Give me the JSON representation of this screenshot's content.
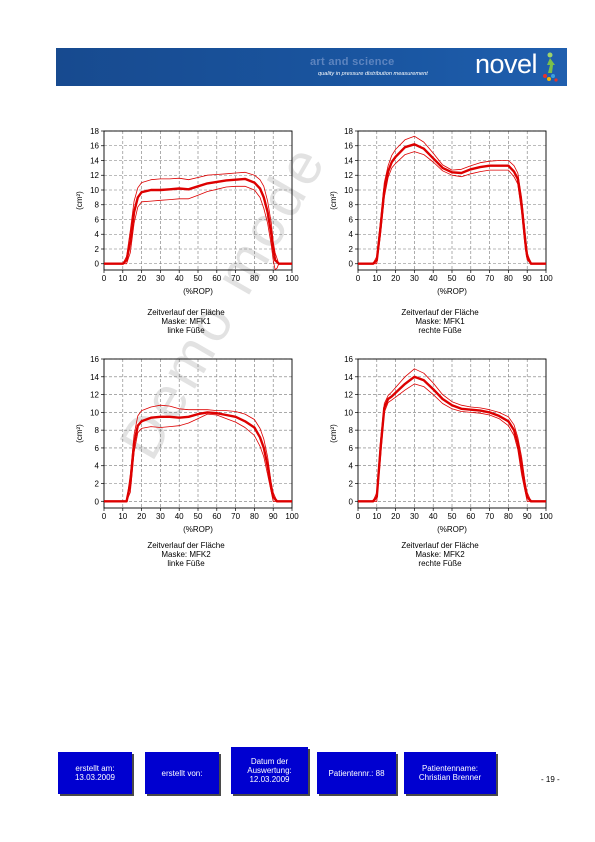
{
  "header": {
    "tagline_main": "art and science",
    "tagline_sub": "quality in pressure distribution measurement",
    "logo": "novel",
    "colors": {
      "banner": "#1a57a3",
      "curve": "#dd0000"
    }
  },
  "watermark": "Demo mode",
  "chart_data": [
    {
      "type": "line",
      "ylabel": "(cm²)",
      "xlabel": "(%ROP)",
      "xlim": [
        0,
        100
      ],
      "ylim": [
        0,
        18
      ],
      "yticks": [
        0,
        2,
        4,
        6,
        8,
        10,
        12,
        14,
        16,
        18
      ],
      "xticks": [
        0,
        10,
        20,
        30,
        40,
        50,
        60,
        70,
        80,
        90,
        100
      ],
      "grid": true,
      "caption": [
        "Zeitverlauf der Fläche",
        "Maske: MFK1",
        "linke Füße"
      ],
      "series": [
        {
          "role": "mean",
          "x": [
            0,
            10,
            12,
            14,
            16,
            18,
            20,
            25,
            30,
            35,
            40,
            45,
            50,
            55,
            60,
            65,
            70,
            75,
            80,
            83,
            85,
            87,
            89,
            90,
            91,
            93,
            100
          ],
          "y": [
            0,
            0,
            0.5,
            3,
            7,
            9,
            9.7,
            10,
            10,
            10.1,
            10.2,
            10.1,
            10.5,
            10.9,
            11.1,
            11.3,
            11.4,
            11.5,
            11,
            10.2,
            9,
            7,
            4,
            2,
            0.5,
            0,
            0
          ]
        },
        {
          "role": "upper",
          "x": [
            0,
            10,
            12,
            14,
            16,
            18,
            20,
            25,
            30,
            35,
            40,
            45,
            50,
            55,
            60,
            65,
            70,
            75,
            80,
            83,
            85,
            87,
            89,
            90,
            91,
            93,
            100
          ],
          "y": [
            0,
            0,
            1,
            4.5,
            8.5,
            10.3,
            11,
            11.4,
            11.5,
            11.5,
            11.6,
            11.4,
            11.7,
            12,
            12.1,
            12.2,
            12.3,
            12.4,
            12,
            11.4,
            10.5,
            8.5,
            5.5,
            3,
            1.5,
            0,
            0
          ]
        },
        {
          "role": "lower",
          "x": [
            0,
            10,
            12,
            14,
            16,
            18,
            20,
            25,
            30,
            35,
            40,
            45,
            50,
            55,
            60,
            65,
            70,
            75,
            80,
            83,
            85,
            87,
            89,
            90,
            91,
            92,
            93,
            100
          ],
          "y": [
            0,
            0,
            0,
            1.5,
            5.5,
            7.7,
            8.4,
            8.5,
            8.6,
            8.7,
            8.8,
            8.8,
            9.3,
            9.8,
            10.1,
            10.4,
            10.5,
            10.5,
            10,
            9,
            7.5,
            5.5,
            2.5,
            0.5,
            -0.8,
            -0.6,
            0,
            0
          ]
        }
      ]
    },
    {
      "type": "line",
      "ylabel": "(cm²)",
      "xlabel": "(%ROP)",
      "xlim": [
        0,
        100
      ],
      "ylim": [
        0,
        18
      ],
      "yticks": [
        0,
        2,
        4,
        6,
        8,
        10,
        12,
        14,
        16,
        18
      ],
      "xticks": [
        0,
        10,
        20,
        30,
        40,
        50,
        60,
        70,
        80,
        90,
        100
      ],
      "grid": true,
      "caption": [
        "Zeitverlauf der Fläche",
        "Maske: MFK1",
        "rechte Füße"
      ],
      "series": [
        {
          "role": "mean",
          "x": [
            0,
            8,
            10,
            12,
            14,
            16,
            18,
            20,
            25,
            30,
            35,
            40,
            45,
            50,
            55,
            60,
            65,
            70,
            75,
            80,
            83,
            85,
            87,
            89,
            90,
            92,
            100
          ],
          "y": [
            0,
            0,
            0.5,
            5,
            10,
            12.5,
            13.8,
            14.5,
            15.8,
            16.2,
            15.6,
            14.3,
            13,
            12.4,
            12.3,
            12.8,
            13.1,
            13.3,
            13.3,
            13.3,
            12.5,
            11.5,
            8,
            3,
            1,
            0,
            0
          ]
        },
        {
          "role": "upper",
          "x": [
            0,
            8,
            10,
            12,
            14,
            16,
            18,
            20,
            25,
            30,
            35,
            40,
            45,
            50,
            55,
            60,
            65,
            70,
            75,
            80,
            83,
            85,
            87,
            89,
            90,
            92,
            100
          ],
          "y": [
            0,
            0,
            1,
            6,
            11,
            13.3,
            14.7,
            15.5,
            16.8,
            17.3,
            16.5,
            15,
            13.4,
            12.7,
            12.8,
            13.3,
            13.7,
            13.9,
            14,
            14,
            13.3,
            12.3,
            9,
            4,
            1.5,
            0,
            0
          ]
        },
        {
          "role": "lower",
          "x": [
            0,
            8,
            10,
            12,
            14,
            16,
            18,
            20,
            25,
            30,
            35,
            40,
            45,
            50,
            55,
            60,
            65,
            70,
            75,
            80,
            83,
            85,
            87,
            89,
            90,
            92,
            100
          ],
          "y": [
            0,
            0,
            0,
            4,
            9,
            11.7,
            13,
            13.6,
            14.8,
            15.2,
            14.8,
            13.8,
            12.6,
            12,
            11.8,
            12.2,
            12.5,
            12.7,
            12.7,
            12.7,
            11.8,
            10.8,
            7,
            2,
            0.5,
            0,
            0
          ]
        }
      ]
    },
    {
      "type": "line",
      "ylabel": "(cm²)",
      "xlabel": "(%ROP)",
      "xlim": [
        0,
        100
      ],
      "ylim": [
        0,
        16
      ],
      "yticks": [
        0,
        2,
        4,
        6,
        8,
        10,
        12,
        14,
        16
      ],
      "xticks": [
        0,
        10,
        20,
        30,
        40,
        50,
        60,
        70,
        80,
        90,
        100
      ],
      "grid": true,
      "caption": [
        "Zeitverlauf der Fläche",
        "Maske: MFK2",
        "linke Füße"
      ],
      "series": [
        {
          "role": "mean",
          "x": [
            0,
            12,
            14,
            16,
            18,
            20,
            25,
            30,
            35,
            40,
            45,
            50,
            55,
            60,
            65,
            70,
            75,
            80,
            83,
            85,
            87,
            89,
            90,
            92,
            100
          ],
          "y": [
            0,
            0,
            2,
            6.5,
            8.5,
            9,
            9.4,
            9.5,
            9.5,
            9.4,
            9.5,
            9.8,
            10,
            9.9,
            9.7,
            9.5,
            9,
            8.3,
            7.2,
            6,
            4,
            1.5,
            0.5,
            0,
            0
          ]
        },
        {
          "role": "upper",
          "x": [
            0,
            12,
            14,
            16,
            18,
            20,
            25,
            30,
            35,
            40,
            45,
            50,
            55,
            60,
            65,
            70,
            75,
            80,
            83,
            85,
            87,
            89,
            90,
            92,
            100
          ],
          "y": [
            0,
            0,
            3,
            7.5,
            9.6,
            10.2,
            10.6,
            10.8,
            10.7,
            10.4,
            10.3,
            10.3,
            10.3,
            10.2,
            10.2,
            10.1,
            9.8,
            9.2,
            8.2,
            7,
            5,
            2,
            1,
            0,
            0
          ]
        },
        {
          "role": "lower",
          "x": [
            0,
            12,
            14,
            16,
            18,
            20,
            25,
            30,
            35,
            40,
            45,
            50,
            55,
            60,
            65,
            70,
            75,
            80,
            83,
            85,
            87,
            89,
            90,
            92,
            100
          ],
          "y": [
            0,
            0,
            1,
            5.5,
            7.7,
            8.2,
            8.4,
            8.3,
            8.4,
            8.5,
            8.8,
            9.3,
            9.8,
            9.7,
            9.3,
            8.9,
            8.3,
            7.4,
            6.2,
            5,
            3,
            1,
            0,
            0,
            0
          ]
        }
      ]
    },
    {
      "type": "line",
      "ylabel": "(cm²)",
      "xlabel": "(%ROP)",
      "xlim": [
        0,
        100
      ],
      "ylim": [
        0,
        16
      ],
      "yticks": [
        0,
        2,
        4,
        6,
        8,
        10,
        12,
        14,
        16
      ],
      "xticks": [
        0,
        10,
        20,
        30,
        40,
        50,
        60,
        70,
        80,
        90,
        100
      ],
      "grid": true,
      "caption": [
        "Zeitverlauf der Fläche",
        "Maske: MFK2",
        "rechte Füße"
      ],
      "series": [
        {
          "role": "mean",
          "x": [
            0,
            8,
            10,
            12,
            14,
            16,
            18,
            20,
            25,
            30,
            35,
            40,
            45,
            50,
            55,
            60,
            65,
            70,
            75,
            80,
            83,
            85,
            87,
            89,
            90,
            92,
            100
          ],
          "y": [
            0,
            0,
            0.5,
            6,
            10.5,
            11.5,
            11.8,
            12.2,
            13.2,
            14,
            13.6,
            12.6,
            11.5,
            10.8,
            10.4,
            10.3,
            10.2,
            10,
            9.6,
            9,
            8,
            6.5,
            4,
            1.5,
            0.5,
            0,
            0
          ]
        },
        {
          "role": "upper",
          "x": [
            0,
            8,
            10,
            12,
            14,
            16,
            18,
            20,
            25,
            30,
            35,
            40,
            45,
            50,
            55,
            60,
            65,
            70,
            75,
            80,
            83,
            85,
            87,
            89,
            90,
            92,
            100
          ],
          "y": [
            0,
            0,
            1,
            7,
            11,
            11.9,
            12.3,
            12.8,
            14,
            14.9,
            14.4,
            13.3,
            12,
            11.2,
            10.8,
            10.6,
            10.5,
            10.3,
            10,
            9.5,
            8.6,
            7.2,
            5,
            2,
            1,
            0,
            0
          ]
        },
        {
          "role": "lower",
          "x": [
            0,
            8,
            10,
            12,
            14,
            16,
            18,
            20,
            25,
            30,
            35,
            40,
            45,
            50,
            55,
            60,
            65,
            70,
            75,
            80,
            83,
            85,
            87,
            89,
            90,
            92,
            100
          ],
          "y": [
            0,
            0,
            0,
            5,
            10,
            11.1,
            11.4,
            11.7,
            12.5,
            13.2,
            12.9,
            12,
            11,
            10.4,
            10.1,
            10,
            9.9,
            9.7,
            9.3,
            8.5,
            7.4,
            5.8,
            3,
            1,
            0,
            0,
            0
          ]
        }
      ]
    }
  ],
  "footer": {
    "created_on_label": "erstellt am:",
    "created_on_value": "13.03.2009",
    "created_by_label": "erstellt von:",
    "analysis_date_label_1": "Datum der",
    "analysis_date_label_2": "Auswertung:",
    "analysis_date_value": "12.03.2009",
    "patient_number": "Patientennr.: 88",
    "patient_name_label": "Patientenname:",
    "patient_name_value": "Christian Brenner",
    "page_number": "- 19 -"
  }
}
